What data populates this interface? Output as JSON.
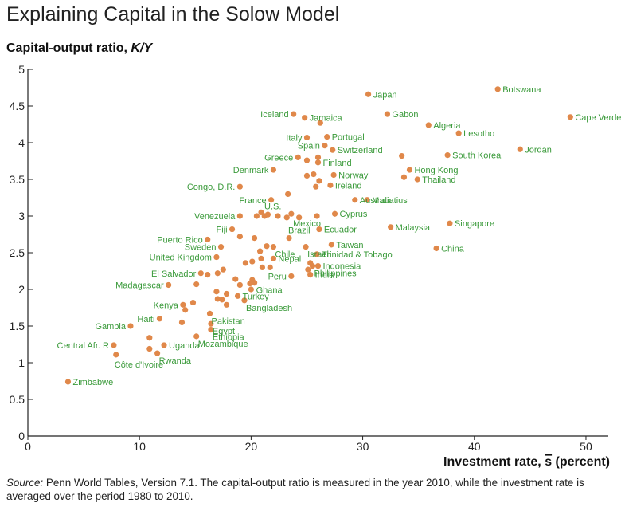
{
  "title": "Explaining Capital in the Solow Model",
  "source": {
    "label": "Source:",
    "text": "Penn World Tables, Version 7.1. The capital-output ratio is measured in the year 2010, while the investment rate is averaged over the period 1980 to 2010."
  },
  "colors": {
    "point": "#e0884a",
    "label": "#3a9a3a",
    "axis": "#222222"
  },
  "chart_data": {
    "type": "scatter",
    "title": "Explaining Capital in the Solow Model",
    "xlabel": "Investment rate, s̄ (percent)",
    "ylabel": "Capital-output ratio, K/Y",
    "xlim": [
      0,
      52
    ],
    "ylim": [
      0,
      5
    ],
    "xticks": [
      0,
      10,
      20,
      30,
      40,
      50
    ],
    "yticks": [
      0,
      0.5,
      1,
      1.5,
      2,
      2.5,
      3,
      3.5,
      4,
      4.5,
      5
    ],
    "ytick_labels": [
      "0",
      "0.5",
      "1",
      "1.5",
      "2",
      "2.5",
      "3",
      "3.5",
      "4",
      "4.5",
      "5"
    ],
    "grid": false,
    "points": [
      {
        "x": 42.1,
        "y": 4.73,
        "label": "Botswana"
      },
      {
        "x": 30.5,
        "y": 4.66,
        "label": "Japan"
      },
      {
        "x": 48.6,
        "y": 4.35,
        "label": "Cape Verde"
      },
      {
        "x": 32.2,
        "y": 4.39,
        "label": "Gabon"
      },
      {
        "x": 23.8,
        "y": 4.39,
        "label": "Iceland"
      },
      {
        "x": 24.8,
        "y": 4.34,
        "label": "Jamaica"
      },
      {
        "x": 26.2,
        "y": 4.27
      },
      {
        "x": 35.9,
        "y": 4.24,
        "label": "Algeria"
      },
      {
        "x": 38.6,
        "y": 4.13,
        "label": "Lesotho"
      },
      {
        "x": 25.0,
        "y": 4.07,
        "label": "Italy"
      },
      {
        "x": 26.8,
        "y": 4.08,
        "label": "Portugal"
      },
      {
        "x": 26.6,
        "y": 3.96,
        "label": "Spain"
      },
      {
        "x": 27.3,
        "y": 3.9,
        "label": "Switzerland"
      },
      {
        "x": 44.1,
        "y": 3.91,
        "label": "Jordan"
      },
      {
        "x": 24.2,
        "y": 3.8,
        "label": "Greece"
      },
      {
        "x": 25.0,
        "y": 3.76
      },
      {
        "x": 26.0,
        "y": 3.8
      },
      {
        "x": 26.0,
        "y": 3.73,
        "label": "Finland"
      },
      {
        "x": 33.5,
        "y": 3.82
      },
      {
        "x": 37.6,
        "y": 3.83,
        "label": "South Korea"
      },
      {
        "x": 22.0,
        "y": 3.63,
        "label": "Denmark"
      },
      {
        "x": 25.0,
        "y": 3.55
      },
      {
        "x": 25.6,
        "y": 3.57
      },
      {
        "x": 27.4,
        "y": 3.56,
        "label": "Norway"
      },
      {
        "x": 26.1,
        "y": 3.48
      },
      {
        "x": 34.2,
        "y": 3.63,
        "label": "Hong Kong"
      },
      {
        "x": 33.7,
        "y": 3.53
      },
      {
        "x": 34.9,
        "y": 3.5,
        "label": "Thailand"
      },
      {
        "x": 19.0,
        "y": 3.4,
        "label": "Congo, D.R."
      },
      {
        "x": 25.8,
        "y": 3.4
      },
      {
        "x": 27.1,
        "y": 3.42,
        "label": "Ireland"
      },
      {
        "x": 23.3,
        "y": 3.3
      },
      {
        "x": 21.8,
        "y": 3.22,
        "label": "France"
      },
      {
        "x": 29.3,
        "y": 3.22,
        "label": "Australia"
      },
      {
        "x": 30.4,
        "y": 3.22,
        "label": "Mauritius"
      },
      {
        "x": 19.0,
        "y": 3.0,
        "label": "Venezuela"
      },
      {
        "x": 20.5,
        "y": 3.0
      },
      {
        "x": 20.9,
        "y": 3.05,
        "label": "U.S."
      },
      {
        "x": 21.2,
        "y": 3.0
      },
      {
        "x": 21.5,
        "y": 3.02
      },
      {
        "x": 22.4,
        "y": 3.0
      },
      {
        "x": 23.2,
        "y": 2.98
      },
      {
        "x": 23.6,
        "y": 3.03
      },
      {
        "x": 24.3,
        "y": 2.98
      },
      {
        "x": 25.9,
        "y": 3.0,
        "label": "Mexico"
      },
      {
        "x": 27.5,
        "y": 3.03,
        "label": "Cyprus"
      },
      {
        "x": 26.1,
        "y": 2.82,
        "label": "Ecuador"
      },
      {
        "x": 18.3,
        "y": 2.82,
        "label": "Fiji"
      },
      {
        "x": 16.1,
        "y": 2.68,
        "label": "Puerto Rico"
      },
      {
        "x": 19.0,
        "y": 2.72
      },
      {
        "x": 20.3,
        "y": 2.7
      },
      {
        "x": 23.4,
        "y": 2.7,
        "label": "Brazil"
      },
      {
        "x": 32.5,
        "y": 2.85,
        "label": "Malaysia"
      },
      {
        "x": 37.8,
        "y": 2.9,
        "label": "Singapore"
      },
      {
        "x": 17.3,
        "y": 2.58,
        "label": "Sweden"
      },
      {
        "x": 21.4,
        "y": 2.59
      },
      {
        "x": 22.0,
        "y": 2.58,
        "label": "Chile"
      },
      {
        "x": 24.9,
        "y": 2.58,
        "label": "Israel"
      },
      {
        "x": 27.2,
        "y": 2.61,
        "label": "Taiwan"
      },
      {
        "x": 36.6,
        "y": 2.56,
        "label": "China"
      },
      {
        "x": 16.9,
        "y": 2.44,
        "label": "United Kingdom"
      },
      {
        "x": 20.8,
        "y": 2.52
      },
      {
        "x": 25.9,
        "y": 2.48,
        "label": "Trinidad & Tobago"
      },
      {
        "x": 19.5,
        "y": 2.36
      },
      {
        "x": 20.1,
        "y": 2.38
      },
      {
        "x": 20.9,
        "y": 2.42
      },
      {
        "x": 22.0,
        "y": 2.42,
        "label": "Nepal"
      },
      {
        "x": 25.3,
        "y": 2.36
      },
      {
        "x": 25.5,
        "y": 2.32,
        "label": "Philippines"
      },
      {
        "x": 26.0,
        "y": 2.32,
        "label": "Indonesia"
      },
      {
        "x": 15.5,
        "y": 2.22,
        "label": "El Salvador"
      },
      {
        "x": 16.1,
        "y": 2.2
      },
      {
        "x": 17.0,
        "y": 2.22
      },
      {
        "x": 17.5,
        "y": 2.27
      },
      {
        "x": 21.0,
        "y": 2.3
      },
      {
        "x": 21.7,
        "y": 2.3
      },
      {
        "x": 23.6,
        "y": 2.18,
        "label": "Peru"
      },
      {
        "x": 25.1,
        "y": 2.27
      },
      {
        "x": 25.3,
        "y": 2.2,
        "label": "India"
      },
      {
        "x": 12.6,
        "y": 2.06,
        "label": "Madagascar"
      },
      {
        "x": 15.1,
        "y": 2.07
      },
      {
        "x": 18.6,
        "y": 2.14
      },
      {
        "x": 19.0,
        "y": 2.06
      },
      {
        "x": 19.9,
        "y": 2.08
      },
      {
        "x": 20.1,
        "y": 2.13
      },
      {
        "x": 20.3,
        "y": 2.09,
        "label": "Ghana"
      },
      {
        "x": 20.0,
        "y": 2.0
      },
      {
        "x": 16.9,
        "y": 1.97
      },
      {
        "x": 17.8,
        "y": 1.94
      },
      {
        "x": 18.8,
        "y": 1.91,
        "label": "Turkey"
      },
      {
        "x": 17.0,
        "y": 1.87
      },
      {
        "x": 17.4,
        "y": 1.86
      },
      {
        "x": 19.4,
        "y": 1.85,
        "label": "Bangladesh"
      },
      {
        "x": 13.9,
        "y": 1.79,
        "label": "Kenya"
      },
      {
        "x": 14.8,
        "y": 1.82
      },
      {
        "x": 17.8,
        "y": 1.79
      },
      {
        "x": 14.1,
        "y": 1.72
      },
      {
        "x": 16.3,
        "y": 1.67,
        "label": "Pakistan"
      },
      {
        "x": 11.8,
        "y": 1.6,
        "label": "Haiti"
      },
      {
        "x": 13.8,
        "y": 1.55
      },
      {
        "x": 16.4,
        "y": 1.53,
        "label": "Egypt"
      },
      {
        "x": 9.2,
        "y": 1.5,
        "label": "Gambia"
      },
      {
        "x": 16.4,
        "y": 1.45,
        "label": "Ethiopia"
      },
      {
        "x": 10.9,
        "y": 1.34
      },
      {
        "x": 15.1,
        "y": 1.36,
        "label": "Mozambique"
      },
      {
        "x": 7.7,
        "y": 1.24,
        "label": "Central Afr. R"
      },
      {
        "x": 12.2,
        "y": 1.24,
        "label": "Uganda"
      },
      {
        "x": 10.9,
        "y": 1.19
      },
      {
        "x": 11.6,
        "y": 1.13,
        "label": "Rwanda"
      },
      {
        "x": 7.9,
        "y": 1.11,
        "label": "Côte d'Ivoire"
      },
      {
        "x": 3.6,
        "y": 0.74,
        "label": "Zimbabwe"
      }
    ]
  }
}
